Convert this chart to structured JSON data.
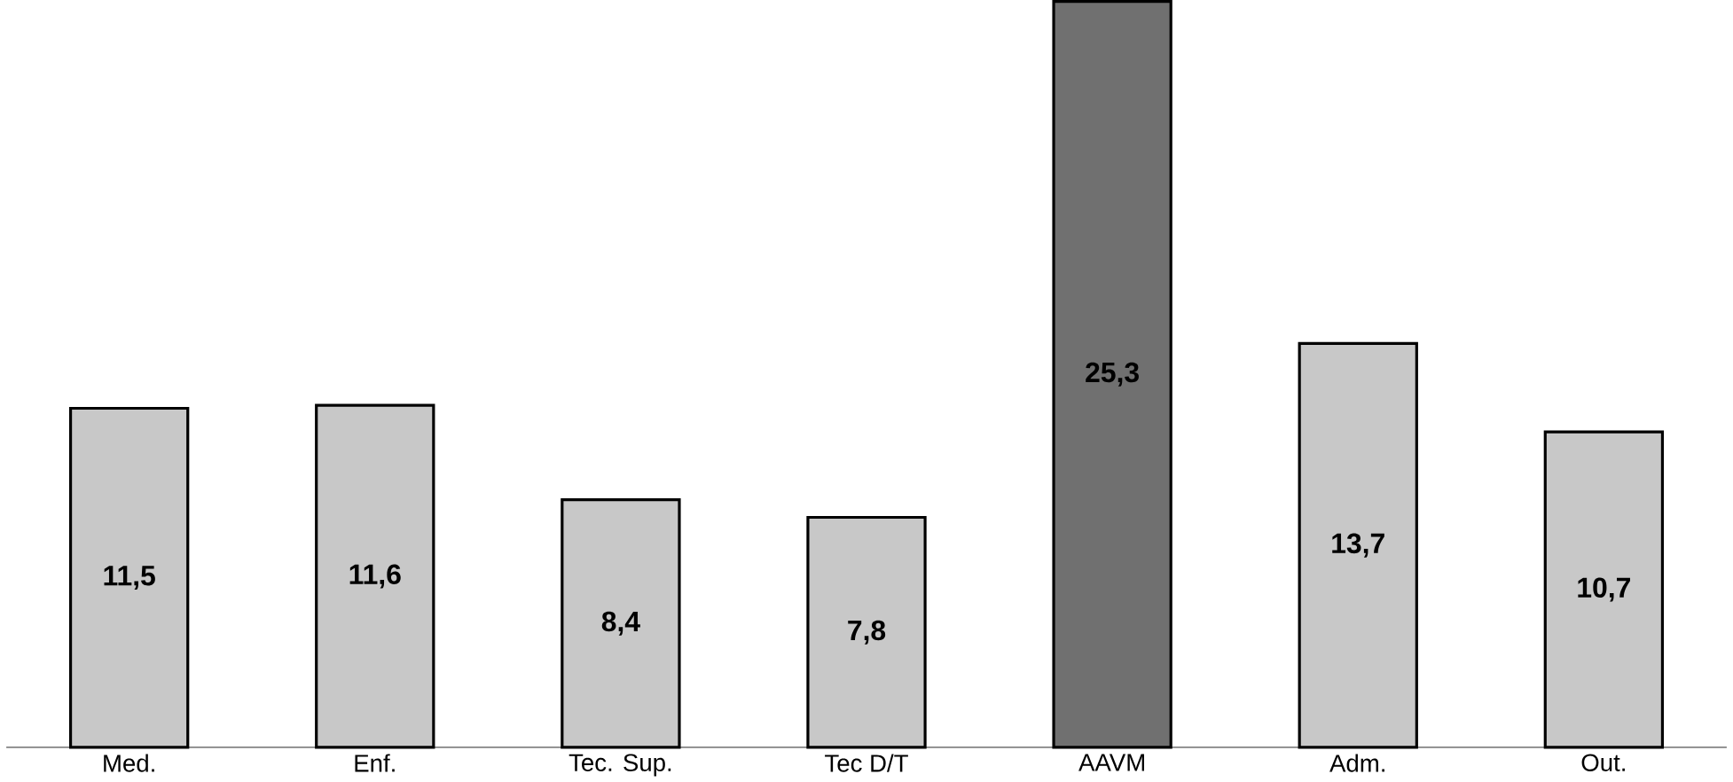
{
  "chart_data": {
    "type": "bar",
    "categories": [
      "Med.",
      "Enf.",
      "Tec. Sup.",
      "Tec D/T",
      "AAVM",
      "Adm.",
      "Out."
    ],
    "values": [
      11.5,
      11.6,
      8.4,
      7.8,
      25.3,
      13.7,
      10.7
    ],
    "value_labels": [
      "11,5",
      "11,6",
      "8,4",
      "7,8",
      "25,3",
      "13,7",
      "10,7"
    ],
    "colors": [
      "#c8c8c8",
      "#c8c8c8",
      "#c8c8c8",
      "#c8c8c8",
      "#707070",
      "#c8c8c8",
      "#c8c8c8"
    ]
  }
}
